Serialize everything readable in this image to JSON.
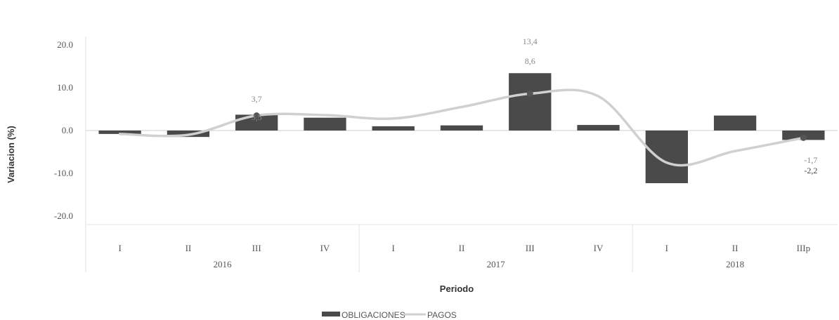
{
  "chart_data": {
    "type": "bar",
    "xlabel": "Periodo",
    "ylabel": "Variacion (%)",
    "ylim": [
      -20,
      20
    ],
    "yticks": [
      20.0,
      10.0,
      0.0,
      -10.0,
      -20.0
    ],
    "ytick_labels": [
      "20.0",
      "10.0",
      "0.0",
      "-10.0",
      "-20.0"
    ],
    "categories": [
      "I",
      "II",
      "III",
      "IV",
      "I",
      "II",
      "III",
      "IV",
      "I",
      "II",
      "IIIp"
    ],
    "groups": [
      {
        "label": "2016",
        "count": 4
      },
      {
        "label": "2017",
        "count": 4
      },
      {
        "label": "2018",
        "count": 3
      }
    ],
    "series": [
      {
        "name": "OBLIGACIONES",
        "type": "bar",
        "color": "#4a4a4a",
        "values": [
          -0.8,
          -1.5,
          3.7,
          3.0,
          1.0,
          1.2,
          13.4,
          1.3,
          -12.3,
          3.5,
          -2.2
        ]
      },
      {
        "name": "PAGOS",
        "type": "line",
        "color": "#d0d0d0",
        "values": [
          -0.8,
          -1.0,
          3.5,
          3.6,
          2.8,
          5.5,
          8.6,
          8.0,
          -7.5,
          -4.8,
          -1.7
        ]
      }
    ],
    "annotations": [
      {
        "index": 2,
        "series": "OBLIGACIONES",
        "text": "3,7"
      },
      {
        "index": 2,
        "series": "PAGOS",
        "text": "3,5"
      },
      {
        "index": 6,
        "series": "OBLIGACIONES",
        "text": "13,4"
      },
      {
        "index": 6,
        "series": "PAGOS",
        "text": "8,6"
      },
      {
        "index": 10,
        "series": "PAGOS",
        "text": "-1,7"
      },
      {
        "index": 10,
        "series": "OBLIGACIONES",
        "text": "-2,2"
      }
    ],
    "legend": {
      "position": "bottom",
      "items": [
        "OBLIGACIONES",
        "PAGOS"
      ]
    },
    "grid": false
  }
}
